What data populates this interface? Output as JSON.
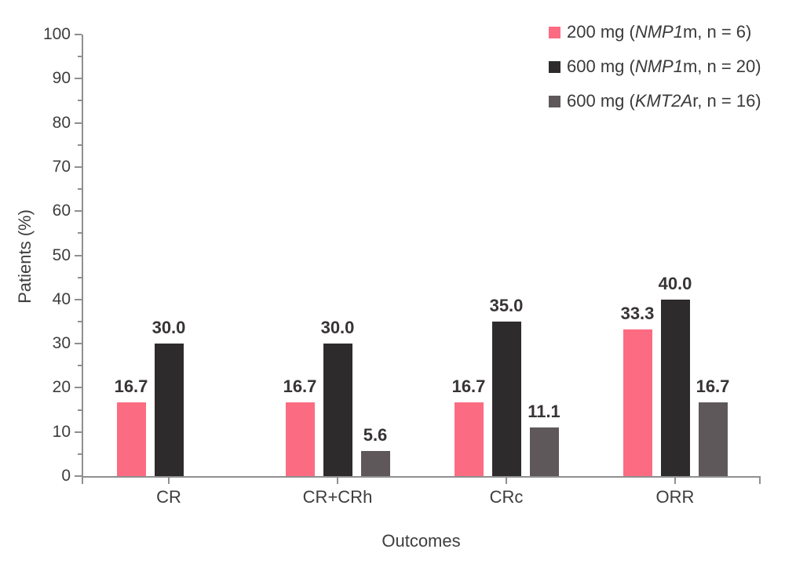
{
  "chart_data": {
    "type": "bar",
    "title": "",
    "xlabel": "Outcomes",
    "ylabel": "Patients (%)",
    "ylim": [
      0,
      100
    ],
    "y_tick_step": 10,
    "y_minor_tick_step": 5,
    "y_tick_labels": [
      "0",
      "10",
      "20",
      "30",
      "40",
      "50",
      "60",
      "70",
      "80",
      "90",
      "100"
    ],
    "grid": false,
    "legend_position": "top-right",
    "categories": [
      "CR",
      "CR+CRh",
      "CRc",
      "ORR"
    ],
    "series": [
      {
        "name": "200 mg (NMP1m, n = 6)",
        "color": "#fb6c82",
        "values": [
          16.7,
          16.7,
          16.7,
          33.3
        ]
      },
      {
        "name": "600 mg (NMP1m, n = 20)",
        "color": "#2e2b2c",
        "values": [
          30.0,
          30.0,
          35.0,
          40.0
        ]
      },
      {
        "name": "600 mg (KMT2Ar, n = 16)",
        "color": "#5e585a",
        "values": [
          null,
          5.6,
          11.1,
          16.7
        ]
      }
    ]
  },
  "legend": {
    "items": [
      {
        "prefix": "200 mg (",
        "gene": "NMP1",
        "suffix": "m, n = 6)",
        "color": "#fb6c82"
      },
      {
        "prefix": "600 mg (",
        "gene": "NMP1",
        "suffix": "m, n = 20)",
        "color": "#2e2b2c"
      },
      {
        "prefix": "600 mg (",
        "gene": "KMT2A",
        "suffix": "r, n = 16)",
        "color": "#5e585a"
      }
    ]
  }
}
